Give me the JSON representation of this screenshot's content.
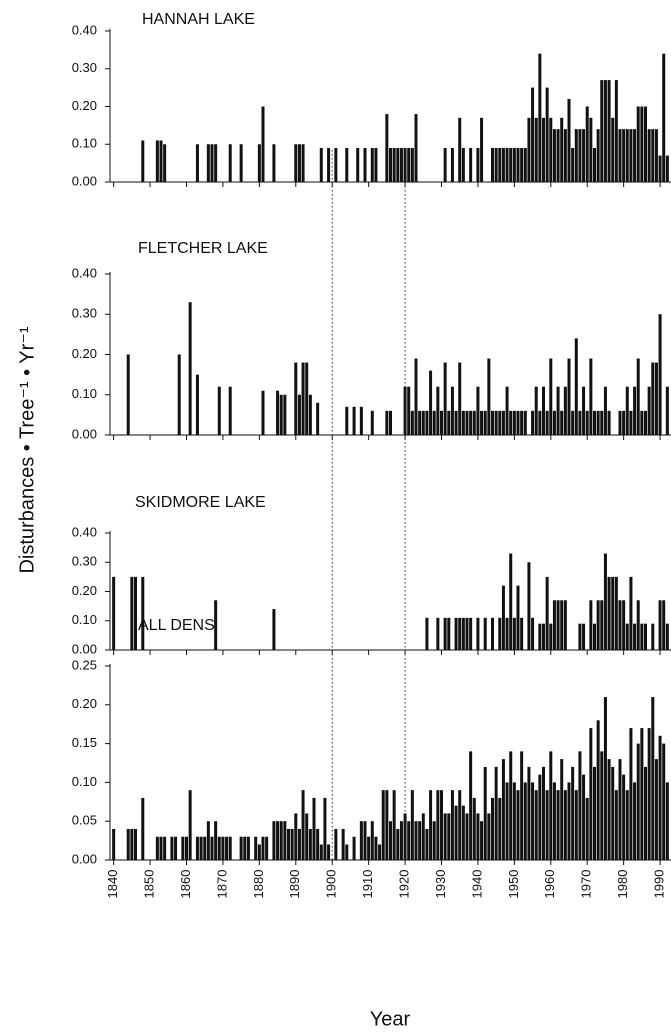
{
  "ylabel": "Disturbances • Tree⁻¹ • Yr⁻¹",
  "xlabel": "Year",
  "reference_lines": [
    1900,
    1920
  ],
  "chart_data": [
    {
      "type": "bar",
      "title": "HANNAH LAKE",
      "color": "#111111",
      "xlim": [
        1839,
        1993
      ],
      "ylim": [
        0,
        0.4
      ],
      "yticks": [
        {
          "value": 0,
          "label": "0.00"
        },
        {
          "value": 0.1,
          "label": "0.10"
        },
        {
          "value": 0.2,
          "label": "0.20"
        },
        {
          "value": 0.3,
          "label": "0.30"
        },
        {
          "value": 0.4,
          "label": "0.40"
        }
      ],
      "x": [
        1848,
        1852,
        1853,
        1854,
        1863,
        1866,
        1867,
        1868,
        1872,
        1875,
        1880,
        1881,
        1884,
        1890,
        1891,
        1892,
        1897,
        1899,
        1901,
        1904,
        1907,
        1909,
        1911,
        1912,
        1915,
        1916,
        1917,
        1918,
        1919,
        1920,
        1921,
        1922,
        1923,
        1931,
        1933,
        1935,
        1936,
        1938,
        1940,
        1941,
        1944,
        1945,
        1946,
        1947,
        1948,
        1949,
        1950,
        1951,
        1952,
        1953,
        1954,
        1955,
        1956,
        1957,
        1958,
        1959,
        1960,
        1961,
        1962,
        1963,
        1964,
        1965,
        1966,
        1967,
        1968,
        1969,
        1970,
        1971,
        1972,
        1973,
        1974,
        1975,
        1976,
        1977,
        1978,
        1979,
        1980,
        1981,
        1982,
        1983,
        1984,
        1985,
        1986,
        1987,
        1988,
        1989,
        1990,
        1991,
        1992
      ],
      "values": [
        0.11,
        0.11,
        0.11,
        0.1,
        0.1,
        0.1,
        0.1,
        0.1,
        0.1,
        0.1,
        0.1,
        0.2,
        0.1,
        0.1,
        0.1,
        0.1,
        0.09,
        0.09,
        0.09,
        0.09,
        0.09,
        0.09,
        0.09,
        0.09,
        0.18,
        0.09,
        0.09,
        0.09,
        0.09,
        0.09,
        0.09,
        0.09,
        0.18,
        0.09,
        0.09,
        0.17,
        0.09,
        0.09,
        0.09,
        0.17,
        0.09,
        0.09,
        0.09,
        0.09,
        0.09,
        0.09,
        0.09,
        0.09,
        0.09,
        0.09,
        0.17,
        0.25,
        0.17,
        0.34,
        0.17,
        0.25,
        0.17,
        0.14,
        0.14,
        0.17,
        0.14,
        0.22,
        0.09,
        0.14,
        0.14,
        0.14,
        0.2,
        0.17,
        0.09,
        0.14,
        0.27,
        0.27,
        0.27,
        0.17,
        0.27,
        0.14,
        0.14,
        0.14,
        0.14,
        0.14,
        0.2,
        0.2,
        0.2,
        0.14,
        0.14,
        0.14,
        0.07,
        0.34,
        0.07
      ]
    },
    {
      "type": "bar",
      "title": "FLETCHER LAKE",
      "color": "#111111",
      "xlim": [
        1839,
        1993
      ],
      "ylim": [
        0,
        0.4
      ],
      "yticks": [
        {
          "value": 0,
          "label": "0.00"
        },
        {
          "value": 0.1,
          "label": "0.10"
        },
        {
          "value": 0.2,
          "label": "0.20"
        },
        {
          "value": 0.3,
          "label": "0.30"
        },
        {
          "value": 0.4,
          "label": "0.40"
        }
      ],
      "x": [
        1844,
        1858,
        1861,
        1863,
        1869,
        1872,
        1881,
        1885,
        1886,
        1887,
        1890,
        1891,
        1892,
        1893,
        1894,
        1896,
        1904,
        1906,
        1908,
        1911,
        1915,
        1916,
        1920,
        1921,
        1922,
        1923,
        1924,
        1925,
        1926,
        1927,
        1928,
        1929,
        1930,
        1931,
        1932,
        1933,
        1934,
        1935,
        1936,
        1937,
        1938,
        1939,
        1940,
        1941,
        1942,
        1943,
        1944,
        1945,
        1946,
        1947,
        1948,
        1949,
        1950,
        1951,
        1952,
        1953,
        1955,
        1956,
        1957,
        1958,
        1959,
        1960,
        1961,
        1962,
        1963,
        1964,
        1965,
        1966,
        1967,
        1968,
        1969,
        1970,
        1971,
        1972,
        1973,
        1974,
        1975,
        1976,
        1979,
        1980,
        1981,
        1982,
        1983,
        1984,
        1985,
        1986,
        1987,
        1988,
        1989,
        1990,
        1992
      ],
      "values": [
        0.2,
        0.2,
        0.33,
        0.15,
        0.12,
        0.12,
        0.11,
        0.11,
        0.1,
        0.1,
        0.18,
        0.1,
        0.18,
        0.18,
        0.1,
        0.08,
        0.07,
        0.07,
        0.07,
        0.06,
        0.06,
        0.06,
        0.12,
        0.12,
        0.06,
        0.19,
        0.06,
        0.06,
        0.06,
        0.16,
        0.06,
        0.12,
        0.06,
        0.18,
        0.06,
        0.12,
        0.06,
        0.18,
        0.06,
        0.06,
        0.06,
        0.06,
        0.12,
        0.06,
        0.06,
        0.19,
        0.06,
        0.06,
        0.06,
        0.06,
        0.12,
        0.06,
        0.06,
        0.06,
        0.06,
        0.06,
        0.06,
        0.12,
        0.06,
        0.12,
        0.06,
        0.19,
        0.06,
        0.12,
        0.06,
        0.12,
        0.19,
        0.06,
        0.24,
        0.06,
        0.12,
        0.06,
        0.19,
        0.06,
        0.06,
        0.06,
        0.12,
        0.06,
        0.06,
        0.06,
        0.12,
        0.06,
        0.12,
        0.19,
        0.06,
        0.06,
        0.12,
        0.18,
        0.18,
        0.3,
        0.12
      ]
    },
    {
      "type": "bar",
      "title": "SKIDMORE LAKE",
      "color": "#111111",
      "xlim": [
        1839,
        1993
      ],
      "ylim": [
        0,
        0.4
      ],
      "yticks": [
        {
          "value": 0,
          "label": "0.00"
        },
        {
          "value": 0.1,
          "label": "0.10"
        },
        {
          "value": 0.2,
          "label": "0.20"
        },
        {
          "value": 0.3,
          "label": "0.30"
        },
        {
          "value": 0.4,
          "label": "0.40"
        }
      ],
      "x": [
        1840,
        1845,
        1846,
        1848,
        1868,
        1884,
        1926,
        1929,
        1931,
        1932,
        1934,
        1935,
        1936,
        1937,
        1938,
        1940,
        1942,
        1944,
        1946,
        1947,
        1948,
        1949,
        1950,
        1951,
        1952,
        1954,
        1955,
        1957,
        1958,
        1959,
        1960,
        1961,
        1962,
        1963,
        1964,
        1968,
        1969,
        1971,
        1972,
        1973,
        1974,
        1975,
        1976,
        1977,
        1978,
        1979,
        1980,
        1981,
        1982,
        1983,
        1984,
        1985,
        1986,
        1988,
        1990,
        1991,
        1992
      ],
      "values": [
        0.25,
        0.25,
        0.25,
        0.25,
        0.17,
        0.14,
        0.11,
        0.11,
        0.11,
        0.11,
        0.11,
        0.11,
        0.11,
        0.11,
        0.11,
        0.11,
        0.11,
        0.11,
        0.11,
        0.22,
        0.11,
        0.33,
        0.11,
        0.22,
        0.11,
        0.3,
        0.11,
        0.09,
        0.09,
        0.25,
        0.09,
        0.17,
        0.17,
        0.17,
        0.17,
        0.09,
        0.09,
        0.17,
        0.09,
        0.17,
        0.17,
        0.33,
        0.25,
        0.25,
        0.25,
        0.17,
        0.17,
        0.09,
        0.25,
        0.09,
        0.17,
        0.09,
        0.09,
        0.09,
        0.17,
        0.17,
        0.09
      ]
    },
    {
      "type": "bar",
      "title": "ALL DENS",
      "color": "#111111",
      "xlim": [
        1839,
        1993
      ],
      "ylim": [
        0,
        0.25
      ],
      "yticks": [
        {
          "value": 0,
          "label": "0.00"
        },
        {
          "value": 0.05,
          "label": "0.05"
        },
        {
          "value": 0.1,
          "label": "0.10"
        },
        {
          "value": 0.15,
          "label": "0.15"
        },
        {
          "value": 0.2,
          "label": "0.20"
        },
        {
          "value": 0.25,
          "label": "0.25"
        }
      ],
      "xticks": [
        1840,
        1850,
        1860,
        1870,
        1880,
        1890,
        1900,
        1910,
        1920,
        1930,
        1940,
        1950,
        1960,
        1970,
        1980,
        1990
      ],
      "x": [
        1840,
        1841,
        1842,
        1843,
        1844,
        1845,
        1846,
        1847,
        1848,
        1849,
        1850,
        1851,
        1852,
        1853,
        1854,
        1855,
        1856,
        1857,
        1858,
        1859,
        1860,
        1861,
        1862,
        1863,
        1864,
        1865,
        1866,
        1867,
        1868,
        1869,
        1870,
        1871,
        1872,
        1873,
        1874,
        1875,
        1876,
        1877,
        1878,
        1879,
        1880,
        1881,
        1882,
        1883,
        1884,
        1885,
        1886,
        1887,
        1888,
        1889,
        1890,
        1891,
        1892,
        1893,
        1894,
        1895,
        1896,
        1897,
        1898,
        1899,
        1900,
        1901,
        1902,
        1903,
        1904,
        1905,
        1906,
        1907,
        1908,
        1909,
        1910,
        1911,
        1912,
        1913,
        1914,
        1915,
        1916,
        1917,
        1918,
        1919,
        1920,
        1921,
        1922,
        1923,
        1924,
        1925,
        1926,
        1927,
        1928,
        1929,
        1930,
        1931,
        1932,
        1933,
        1934,
        1935,
        1936,
        1937,
        1938,
        1939,
        1940,
        1941,
        1942,
        1943,
        1944,
        1945,
        1946,
        1947,
        1948,
        1949,
        1950,
        1951,
        1952,
        1953,
        1954,
        1955,
        1956,
        1957,
        1958,
        1959,
        1960,
        1961,
        1962,
        1963,
        1964,
        1965,
        1966,
        1967,
        1968,
        1969,
        1970,
        1971,
        1972,
        1973,
        1974,
        1975,
        1976,
        1977,
        1978,
        1979,
        1980,
        1981,
        1982,
        1983,
        1984,
        1985,
        1986,
        1987,
        1988,
        1989,
        1990,
        1991,
        1992
      ],
      "values": [
        0.04,
        0,
        0,
        0,
        0.04,
        0.04,
        0.04,
        0,
        0.08,
        0,
        0,
        0,
        0.03,
        0.03,
        0.03,
        0,
        0.03,
        0.03,
        0,
        0.03,
        0.03,
        0.09,
        0,
        0.03,
        0.03,
        0.03,
        0.05,
        0.03,
        0.05,
        0.03,
        0.03,
        0.03,
        0.03,
        0,
        0,
        0.03,
        0.03,
        0.03,
        0,
        0.03,
        0.02,
        0.03,
        0.03,
        0,
        0.05,
        0.05,
        0.05,
        0.05,
        0.04,
        0.04,
        0.06,
        0.04,
        0.09,
        0.06,
        0.04,
        0.08,
        0.04,
        0.02,
        0.08,
        0.02,
        0,
        0.04,
        0,
        0.04,
        0.02,
        0,
        0.03,
        0,
        0.05,
        0.05,
        0.03,
        0.05,
        0.03,
        0.02,
        0.09,
        0.09,
        0.05,
        0.09,
        0.04,
        0.05,
        0.06,
        0.05,
        0.09,
        0.05,
        0.05,
        0.06,
        0.04,
        0.09,
        0.05,
        0.09,
        0.09,
        0.06,
        0.06,
        0.09,
        0.07,
        0.09,
        0.07,
        0.06,
        0.14,
        0.08,
        0.06,
        0.05,
        0.12,
        0.06,
        0.08,
        0.12,
        0.08,
        0.13,
        0.1,
        0.14,
        0.1,
        0.09,
        0.14,
        0.1,
        0.12,
        0.1,
        0.09,
        0.11,
        0.12,
        0.09,
        0.14,
        0.1,
        0.09,
        0.13,
        0.09,
        0.1,
        0.12,
        0.09,
        0.14,
        0.11,
        0.08,
        0.17,
        0.12,
        0.18,
        0.14,
        0.21,
        0.13,
        0.12,
        0.09,
        0.13,
        0.11,
        0.09,
        0.17,
        0.1,
        0.15,
        0.17,
        0.12,
        0.17,
        0.21,
        0.13,
        0.16,
        0.15,
        0.1
      ]
    }
  ]
}
